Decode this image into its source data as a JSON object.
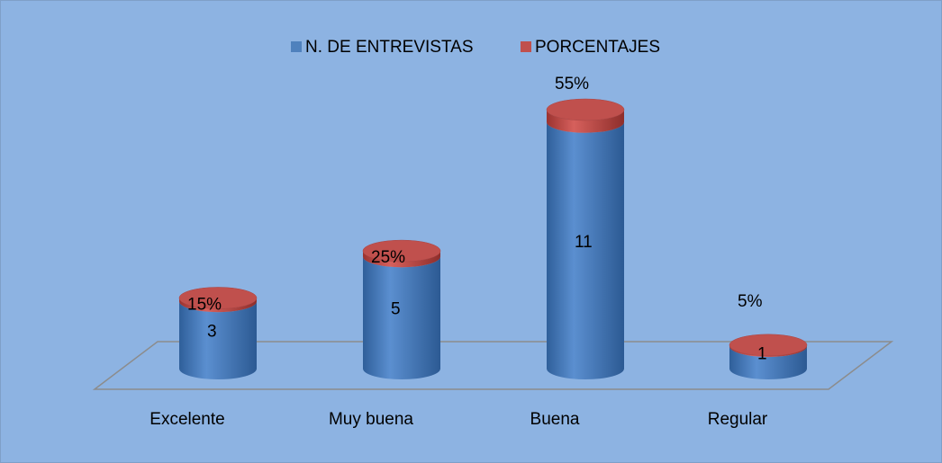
{
  "chart_data": {
    "type": "cylinder3d_stacked",
    "categories": [
      "Excelente",
      "Muy buena",
      "Buena",
      "Regular"
    ],
    "series": [
      {
        "name": "N. DE ENTREVISTAS",
        "color": "#4f81bd",
        "values": [
          3,
          5,
          11,
          1
        ]
      },
      {
        "name": "PORCENTAJES",
        "color": "#c0504d",
        "values": [
          0.15,
          0.25,
          0.55,
          0.05
        ],
        "value_labels": [
          "15%",
          "25%",
          "55%",
          "5%"
        ]
      }
    ],
    "legend": "top"
  }
}
